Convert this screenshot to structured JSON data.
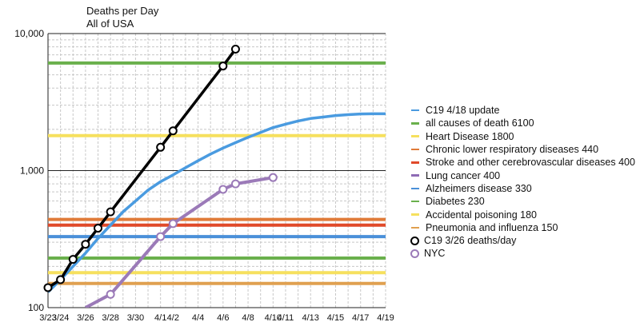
{
  "chart_data": {
    "type": "line",
    "title": "Deaths per Day",
    "subtitle": "All of USA",
    "y_scale": "log",
    "ylim": [
      100,
      10000
    ],
    "y_ticks": [
      {
        "value": 100,
        "label": "100"
      },
      {
        "value": 1000,
        "label": "1,000"
      },
      {
        "value": 10000,
        "label": "10,000"
      }
    ],
    "xlim": [
      "3/23",
      "4/19"
    ],
    "x_ticks": [
      "3/23",
      "3/24",
      "3/26",
      "3/28",
      "3/30",
      "4/1",
      "4/2",
      "4/4",
      "4/6",
      "4/8",
      "4/10",
      "4/11",
      "4/13",
      "4/15",
      "4/17",
      "4/19"
    ],
    "x_tick_days": [
      0,
      1,
      3,
      5,
      7,
      9,
      10,
      12,
      14,
      16,
      18,
      19,
      21,
      23,
      25,
      27
    ],
    "legend_position": "right",
    "grid": true,
    "reference_lines": [
      {
        "name": "all causes of death 6100",
        "value": 6100,
        "color": "#6ab04c"
      },
      {
        "name": "Heart Disease 1800",
        "value": 1800,
        "color": "#f6e05e"
      },
      {
        "name": "Chronic lower respiratory diseases 440",
        "value": 440,
        "color": "#e07b39"
      },
      {
        "name": "Stroke and other cerebrovascular diseases 400",
        "value": 400,
        "color": "#e04a2a"
      },
      {
        "name": "Alzheimers disease 330",
        "value": 330,
        "color": "#4a90d9"
      },
      {
        "name": "Diabetes 230",
        "value": 230,
        "color": "#6ab04c"
      },
      {
        "name": "Accidental poisoning 180",
        "value": 180,
        "color": "#f6e05e"
      },
      {
        "name": "Pneumonia and influenza 150",
        "value": 150,
        "color": "#e0a050"
      }
    ],
    "series": [
      {
        "name": "C19 4/18 update",
        "color": "#4a9be0",
        "x": [
          "3/23",
          "3/24",
          "3/25",
          "3/26",
          "3/27",
          "3/28",
          "3/29",
          "3/30",
          "3/31",
          "4/1",
          "4/2",
          "4/3",
          "4/4",
          "4/5",
          "4/6",
          "4/7",
          "4/8",
          "4/9",
          "4/10",
          "4/11",
          "4/12",
          "4/13",
          "4/14",
          "4/15",
          "4/16",
          "4/17",
          "4/18",
          "4/19"
        ],
        "values": [
          130,
          160,
          200,
          250,
          320,
          400,
          500,
          600,
          720,
          830,
          930,
          1050,
          1180,
          1320,
          1460,
          1600,
          1750,
          1900,
          2060,
          2180,
          2300,
          2400,
          2460,
          2520,
          2560,
          2590,
          2600,
          2600
        ]
      },
      {
        "name": "C19 3/26 deaths/day",
        "color": "#000000",
        "marker": "circle",
        "x": [
          "3/23",
          "3/24",
          "3/25",
          "3/26",
          "3/27",
          "3/28",
          "4/1",
          "4/2",
          "4/6",
          "4/7"
        ],
        "values": [
          140,
          160,
          225,
          290,
          380,
          500,
          1480,
          1950,
          5800,
          7700
        ]
      },
      {
        "name": "NYC",
        "color": "#9b7ab8",
        "marker": "circle",
        "x": [
          "3/26",
          "3/28",
          "4/1",
          "4/2",
          "4/6",
          "4/7",
          "4/10"
        ],
        "values": [
          100,
          125,
          330,
          410,
          730,
          800,
          890
        ]
      }
    ],
    "legend_entries": [
      "C19 4/18 update",
      "all causes of death 6100",
      "Heart Disease 1800",
      "Chronic lower respiratory diseases 440",
      "Stroke and other cerebrovascular diseases 400",
      "Lung cancer 400",
      "Alzheimers disease 330",
      "Diabetes 230",
      "Accidental poisoning 180",
      "Pneumonia and influenza 150",
      "C19 3/26 deaths/day",
      "NYC"
    ]
  },
  "legend": {
    "items": [
      {
        "label": "C19 4/18 update",
        "color": "#4a9be0",
        "kind": "line"
      },
      {
        "label": "all causes of death 6100",
        "color": "#6ab04c",
        "kind": "line"
      },
      {
        "label": "Heart Disease 1800",
        "color": "#f6e05e",
        "kind": "line"
      },
      {
        "label": "Chronic lower respiratory diseases 440",
        "color": "#e07b39",
        "kind": "line"
      },
      {
        "label": "Stroke and other cerebrovascular diseases 400",
        "color": "#e04a2a",
        "kind": "line"
      },
      {
        "label": "Lung cancer 400",
        "color": "#8e6bb5",
        "kind": "line"
      },
      {
        "label": "Alzheimers disease 330",
        "color": "#4a90d9",
        "kind": "line"
      },
      {
        "label": "Diabetes 230",
        "color": "#6ab04c",
        "kind": "line"
      },
      {
        "label": "Accidental poisoning 180",
        "color": "#f6e05e",
        "kind": "line"
      },
      {
        "label": "Pneumonia and influenza 150",
        "color": "#e0a050",
        "kind": "line"
      },
      {
        "label": "C19 3/26 deaths/day",
        "color": "#000000",
        "kind": "marker"
      },
      {
        "label": "NYC",
        "color": "#9b7ab8",
        "kind": "marker"
      }
    ]
  }
}
